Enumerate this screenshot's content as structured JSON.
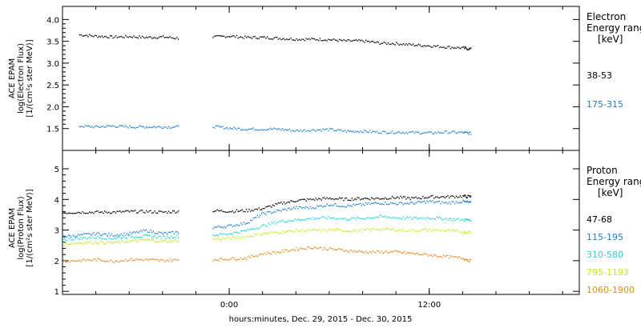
{
  "chart_data": [
    {
      "type": "scatter",
      "title": "",
      "ylabel_lines": [
        "ACE EPAM",
        "log(Electron Flux)",
        "[1/(cm²s ster MeV)]"
      ],
      "ylim": [
        1.0,
        4.3
      ],
      "yticks": [
        "1.5",
        "2.0",
        "2.5",
        "3.0",
        "3.5",
        "4.0"
      ],
      "legend": {
        "title_lines": [
          "Electron",
          "Energy ranges",
          "[keV]"
        ],
        "placement": "right"
      },
      "series": [
        {
          "name": "38-53",
          "color": "#000000",
          "x": [
            -9,
            -8,
            -7,
            -6,
            -5,
            -4,
            -3,
            -1,
            0,
            1,
            2,
            3,
            4,
            5,
            6,
            7,
            8,
            9,
            10,
            11,
            12,
            13,
            14,
            14.5
          ],
          "y": [
            3.66,
            3.63,
            3.61,
            3.62,
            3.6,
            3.61,
            3.58,
            3.61,
            3.63,
            3.6,
            3.6,
            3.58,
            3.56,
            3.56,
            3.55,
            3.52,
            3.52,
            3.47,
            3.46,
            3.43,
            3.41,
            3.38,
            3.36,
            3.33
          ]
        },
        {
          "name": "175-315",
          "color": "#1a7fd4",
          "x": [
            -9,
            -8,
            -7,
            -6,
            -5,
            -4,
            -3,
            -1,
            0,
            1,
            2,
            3,
            4,
            5,
            6,
            7,
            8,
            9,
            10,
            11,
            12,
            13,
            14,
            14.5
          ],
          "y": [
            1.57,
            1.55,
            1.57,
            1.55,
            1.55,
            1.55,
            1.55,
            1.56,
            1.52,
            1.5,
            1.5,
            1.5,
            1.46,
            1.48,
            1.49,
            1.45,
            1.45,
            1.43,
            1.43,
            1.42,
            1.41,
            1.43,
            1.42,
            1.4
          ]
        }
      ]
    },
    {
      "type": "scatter",
      "title": "",
      "ylabel_lines": [
        "ACE EPAM",
        "log(Proton Flux)",
        "[1/(cm²s ster MeV)]"
      ],
      "ylim": [
        0.9,
        5.6
      ],
      "yticks": [
        "1",
        "2",
        "3",
        "4",
        "5"
      ],
      "xlabel": "hours:minutes, Dec. 29, 2015 - Dec. 30, 2015",
      "xlim": [
        -10,
        21
      ],
      "xticks": [
        {
          "x": 0,
          "label": "0:00"
        },
        {
          "x": 12,
          "label": "12:00"
        }
      ],
      "legend": {
        "title_lines": [
          "Proton",
          "Energy ranges",
          "[keV]"
        ],
        "placement": "right"
      },
      "series": [
        {
          "name": "47-68",
          "color": "#000000",
          "x": [
            -10,
            -9,
            -8,
            -7,
            -6,
            -5,
            -4,
            -3,
            -1,
            0,
            1,
            2,
            3,
            4,
            5,
            6,
            7,
            8,
            9,
            10,
            11,
            12,
            13,
            14,
            14.5
          ],
          "y": [
            3.58,
            3.6,
            3.6,
            3.6,
            3.62,
            3.62,
            3.6,
            3.63,
            3.65,
            3.63,
            3.65,
            3.72,
            3.88,
            3.98,
            4.02,
            4.05,
            4.02,
            4.05,
            4.05,
            4.08,
            4.05,
            4.1,
            4.1,
            4.12,
            4.1
          ]
        },
        {
          "name": "115-195",
          "color": "#1a7fd4",
          "x": [
            -10,
            -9,
            -8,
            -7,
            -6,
            -5,
            -4,
            -3,
            -1,
            0,
            1,
            2,
            3,
            4,
            5,
            6,
            7,
            8,
            9,
            10,
            11,
            12,
            13,
            14,
            14.5
          ],
          "y": [
            2.8,
            2.85,
            2.9,
            2.85,
            2.9,
            3.0,
            2.9,
            2.95,
            3.1,
            3.15,
            3.25,
            3.55,
            3.65,
            3.75,
            3.75,
            3.85,
            3.8,
            3.85,
            3.9,
            3.88,
            3.9,
            3.95,
            3.9,
            3.95,
            3.9
          ]
        },
        {
          "name": "310-580",
          "color": "#22d4d4",
          "x": [
            -10,
            -9,
            -8,
            -7,
            -6,
            -5,
            -4,
            -3,
            -1,
            0,
            1,
            2,
            3,
            4,
            5,
            6,
            7,
            8,
            9,
            10,
            11,
            12,
            13,
            14,
            14.5
          ],
          "y": [
            2.7,
            2.75,
            2.78,
            2.75,
            2.8,
            2.82,
            2.78,
            2.82,
            2.85,
            2.9,
            3.0,
            3.15,
            3.3,
            3.35,
            3.4,
            3.42,
            3.38,
            3.4,
            3.45,
            3.42,
            3.4,
            3.42,
            3.38,
            3.35,
            3.35
          ]
        },
        {
          "name": "795-1193",
          "color": "#c7e61e",
          "x": [
            -10,
            -9,
            -8,
            -7,
            -6,
            -5,
            -4,
            -3,
            -1,
            0,
            1,
            2,
            3,
            4,
            5,
            6,
            7,
            8,
            9,
            10,
            11,
            12,
            13,
            14,
            14.5
          ],
          "y": [
            2.55,
            2.6,
            2.62,
            2.6,
            2.65,
            2.7,
            2.65,
            2.68,
            2.72,
            2.75,
            2.8,
            2.9,
            2.95,
            3.0,
            3.0,
            3.02,
            3.0,
            3.0,
            3.05,
            3.02,
            3.0,
            3.02,
            3.0,
            2.95,
            2.95
          ]
        },
        {
          "name": "1060-1900",
          "color": "#e08a1e",
          "x": [
            -10,
            -9,
            -8,
            -7,
            -6,
            -5,
            -4,
            -3,
            -1,
            0,
            1,
            2,
            3,
            4,
            5,
            6,
            7,
            8,
            9,
            10,
            11,
            12,
            13,
            14,
            14.5
          ],
          "y": [
            2.0,
            2.02,
            2.05,
            2.0,
            2.05,
            2.05,
            2.02,
            2.05,
            2.05,
            2.08,
            2.1,
            2.25,
            2.3,
            2.4,
            2.45,
            2.4,
            2.35,
            2.3,
            2.3,
            2.3,
            2.25,
            2.2,
            2.15,
            2.1,
            2.0
          ]
        }
      ]
    }
  ]
}
